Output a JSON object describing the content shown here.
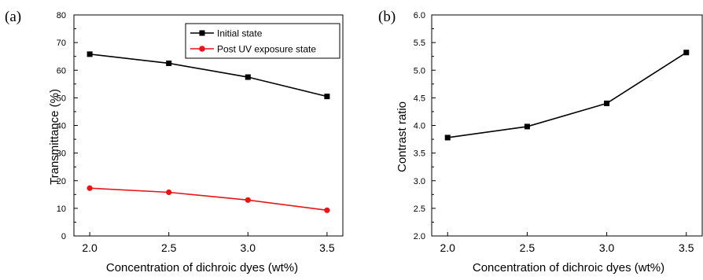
{
  "chart_data": [
    {
      "panel_label": "(a)",
      "type": "line",
      "xlabel": "Concentration of dichroic dyes (wt%)",
      "ylabel": "Transmittance (%)",
      "xlim": [
        1.9,
        3.6
      ],
      "ylim": [
        0,
        80
      ],
      "x_ticks": [
        "2.0",
        "2.5",
        "3.0",
        "3.5"
      ],
      "y_ticks": [
        "0",
        "10",
        "20",
        "30",
        "40",
        "50",
        "60",
        "70",
        "80"
      ],
      "legend_position": "top-right",
      "grid": false,
      "series": [
        {
          "name": "Initial state",
          "color": "#000000",
          "marker": "square",
          "x": [
            2.0,
            2.5,
            3.0,
            3.5
          ],
          "values": [
            65.8,
            62.5,
            57.5,
            50.5
          ]
        },
        {
          "name": "Post UV exposure state",
          "color": "#e8141a",
          "marker": "circle",
          "x": [
            2.0,
            2.5,
            3.0,
            3.5
          ],
          "values": [
            17.3,
            15.8,
            13.0,
            9.3
          ]
        }
      ]
    },
    {
      "panel_label": "(b)",
      "type": "line",
      "xlabel": "Concentration of dichroic dyes (wt%)",
      "ylabel": "Contrast ratio",
      "xlim": [
        1.9,
        3.6
      ],
      "ylim": [
        2.0,
        6.0
      ],
      "x_ticks": [
        "2.0",
        "2.5",
        "3.0",
        "3.5"
      ],
      "y_ticks": [
        "2.0",
        "2.5",
        "3.0",
        "3.5",
        "4.0",
        "4.5",
        "5.0",
        "5.5",
        "6.0"
      ],
      "grid": false,
      "series": [
        {
          "color": "#000000",
          "marker": "square",
          "x": [
            2.0,
            2.5,
            3.0,
            3.5
          ],
          "values": [
            3.78,
            3.98,
            4.4,
            5.32
          ]
        }
      ]
    }
  ]
}
